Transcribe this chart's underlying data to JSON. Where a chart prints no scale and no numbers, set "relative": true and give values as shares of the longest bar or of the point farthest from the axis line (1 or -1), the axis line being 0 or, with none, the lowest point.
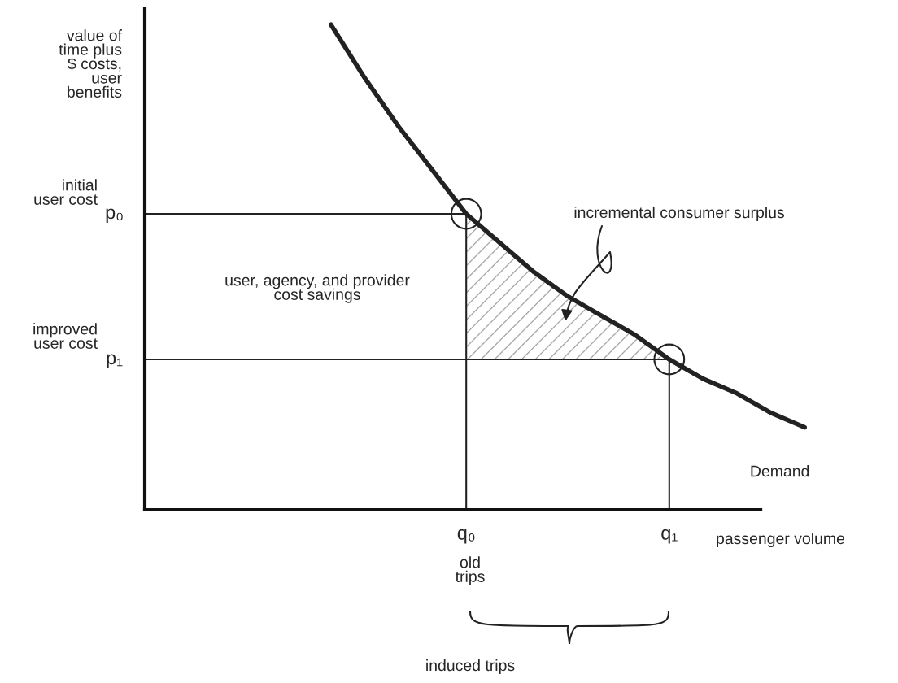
{
  "chart_data": {
    "type": "line",
    "relative": true,
    "grid": false,
    "tick_labels": "x",
    "ylabel": "value of time plus $ costs, user benefits",
    "xlabel": "passenger volume",
    "categories": [
      null,
      null,
      null,
      null,
      null,
      null,
      null,
      null,
      null,
      "q₀",
      null,
      null,
      null,
      null,
      null,
      "q₁",
      null,
      null,
      null,
      null
    ],
    "series": [
      {
        "name": "Demand",
        "color": "#222222",
        "values": [
          null,
          null,
          null,
          null,
          null,
          1,
          0.89,
          0.79,
          0.7,
          0.61,
          0.55,
          0.49,
          0.44,
          0.4,
          0.36,
          0.31,
          0.27,
          0.24,
          0.2,
          0.17
        ]
      },
      {
        "type": "area",
        "color": "#aaaaaa",
        "values": [
          null,
          null,
          null,
          null,
          null,
          null,
          null,
          null,
          null,
          0.61,
          0.55,
          0.49,
          0.44,
          0.4,
          0.36,
          0.31,
          null,
          null,
          null,
          null
        ]
      },
      {
        "type": "scatter",
        "color": "#222222",
        "marker": "circle",
        "values": [
          null,
          null,
          null,
          null,
          null,
          null,
          null,
          null,
          null,
          0.61,
          null,
          null,
          null,
          null,
          null,
          0.31,
          null,
          null,
          null,
          null
        ]
      }
    ],
    "ref_lines": [
      {
        "axis": "y",
        "value": 0.61,
        "label": "p₀"
      },
      {
        "axis": "y",
        "value": 0.31,
        "label": "p₁"
      }
    ],
    "annotations": [
      "initial\nuser cost",
      "improved\nuser cost",
      "user, agency, and provider\ncost savings",
      "incremental consumer surplus",
      "old\ntrips",
      "induced trips"
    ]
  }
}
